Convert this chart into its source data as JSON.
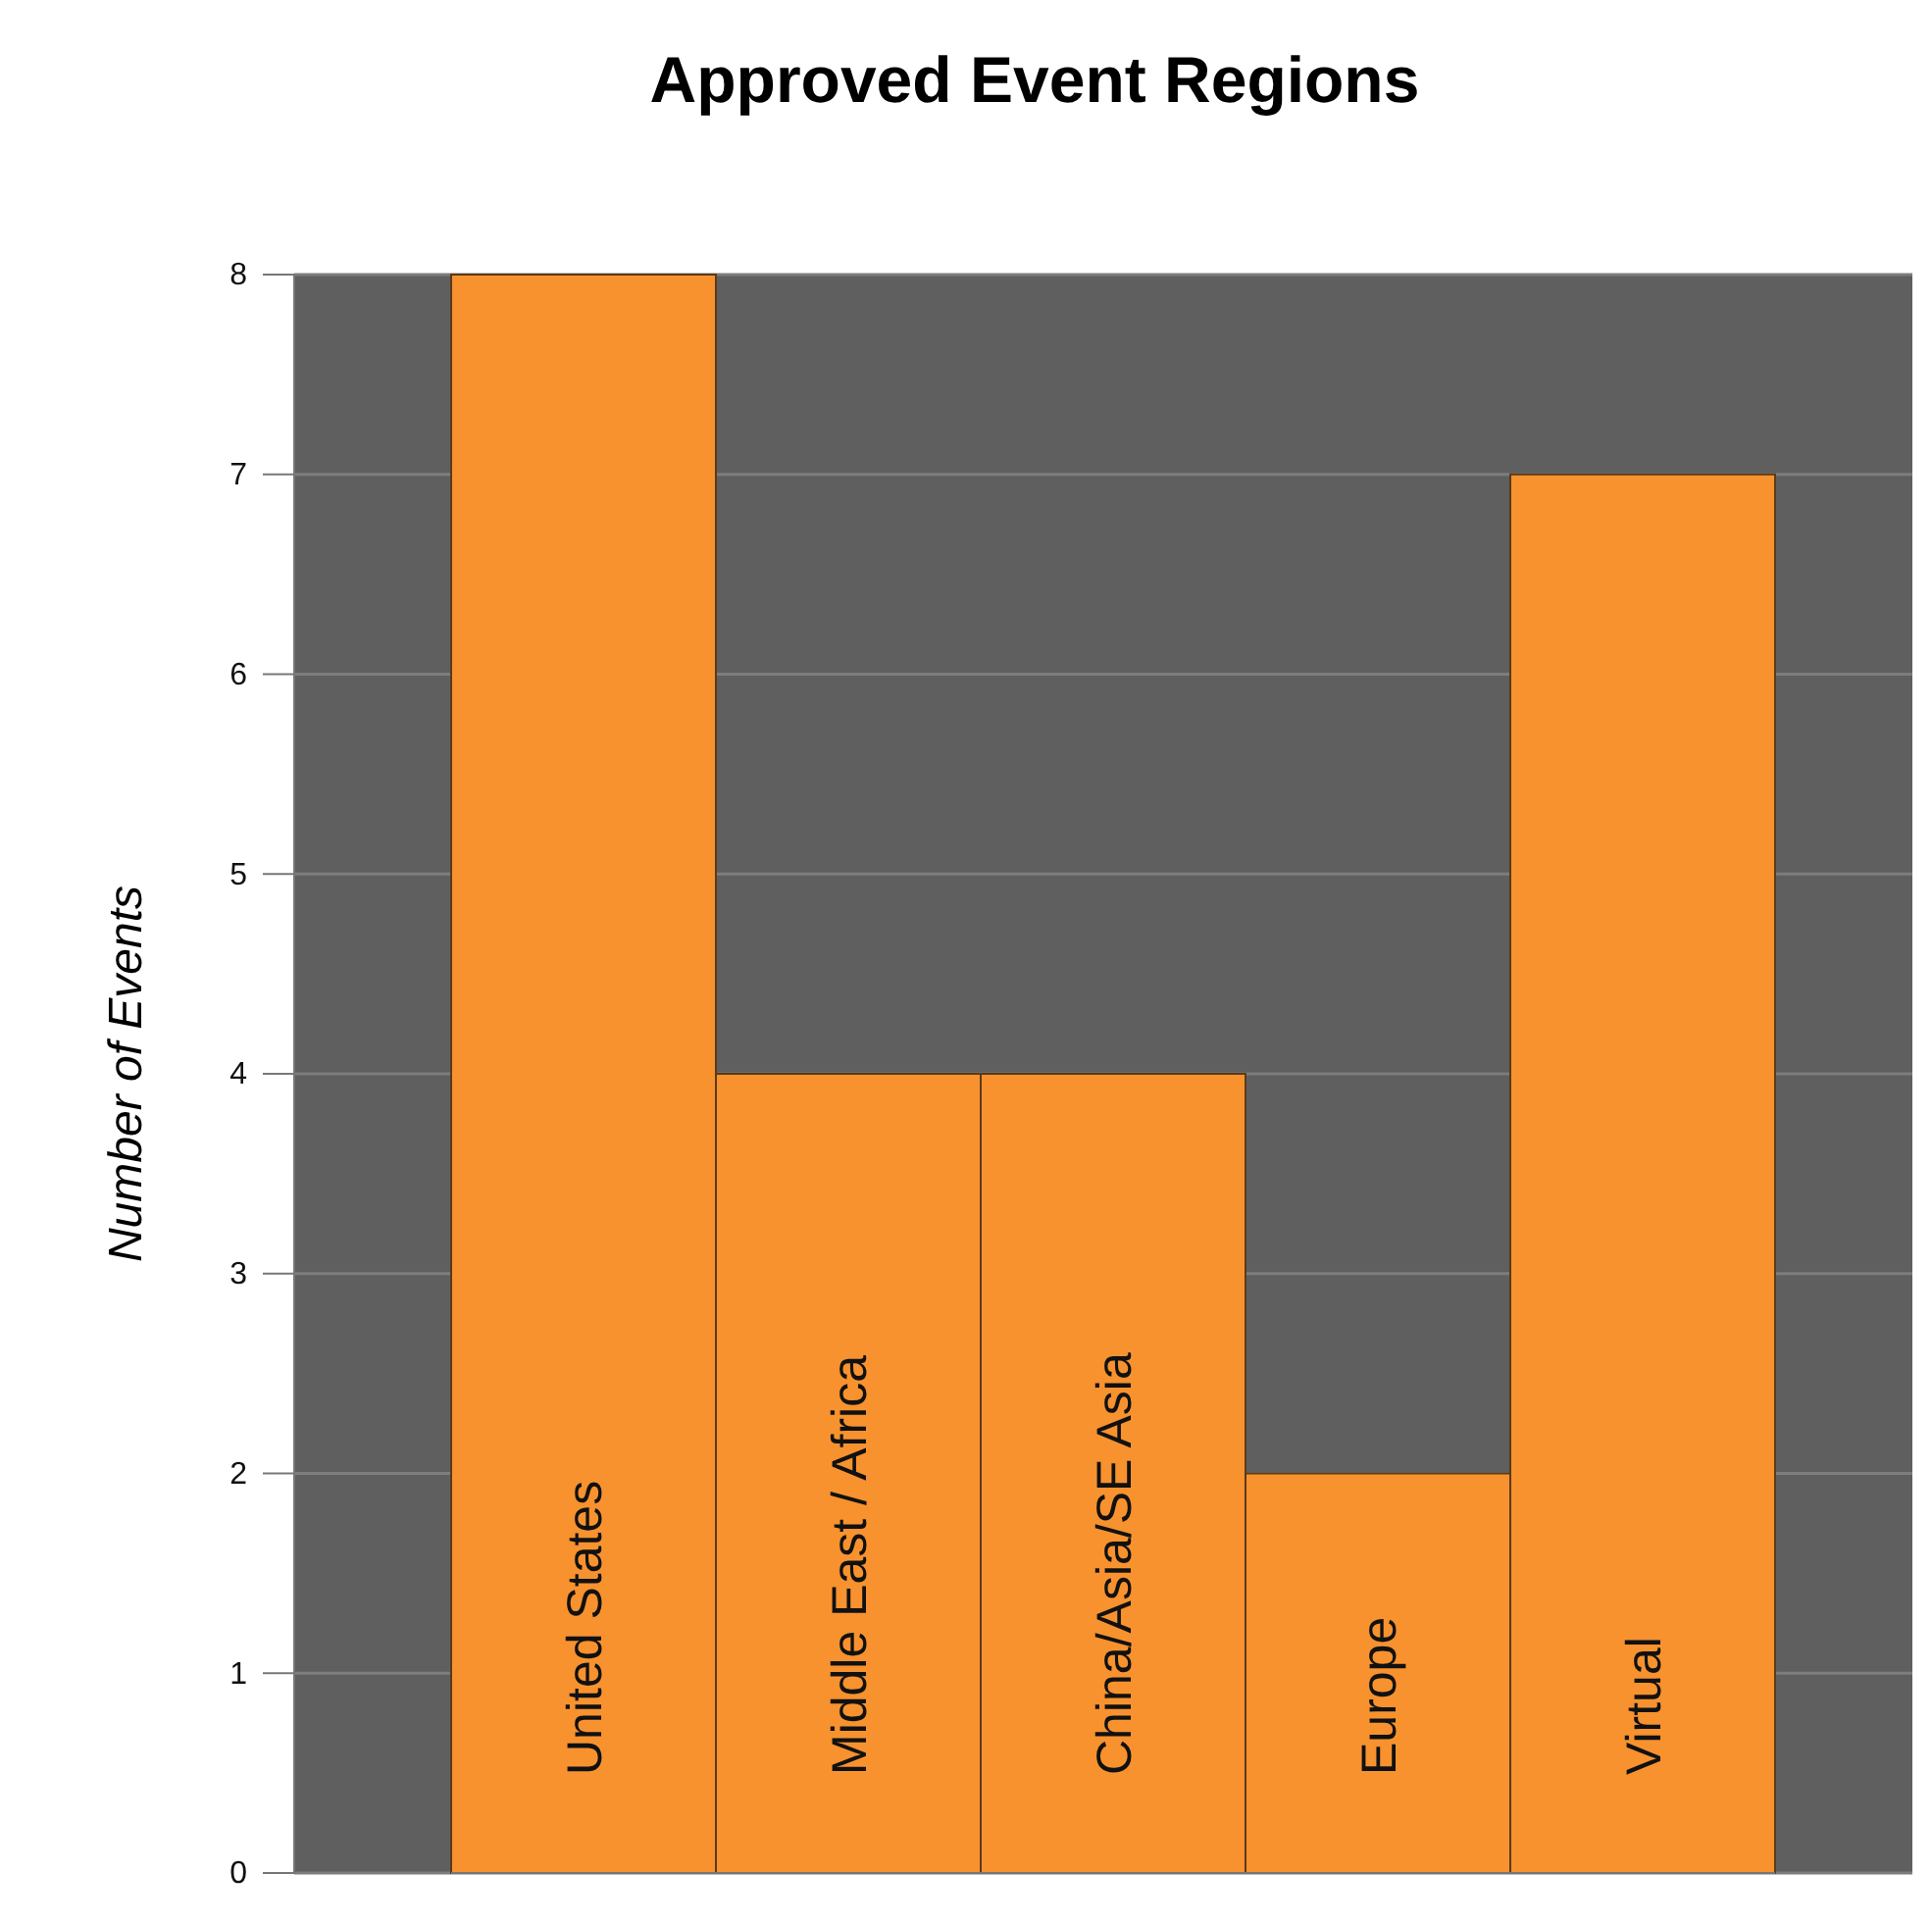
{
  "chart_data": {
    "type": "bar",
    "title": "Approved Event Regions",
    "ylabel": "Number of Events",
    "categories": [
      "United States",
      "Middle East / Africa",
      "China/Asia/SE Asia",
      "Europe",
      "Virtual"
    ],
    "values": [
      8,
      4,
      4,
      2,
      7
    ],
    "color": "#f7922f",
    "ylim": [
      0,
      8
    ],
    "yticks": [
      0,
      1,
      2,
      3,
      4,
      5,
      6,
      7,
      8
    ],
    "grid": "y"
  }
}
